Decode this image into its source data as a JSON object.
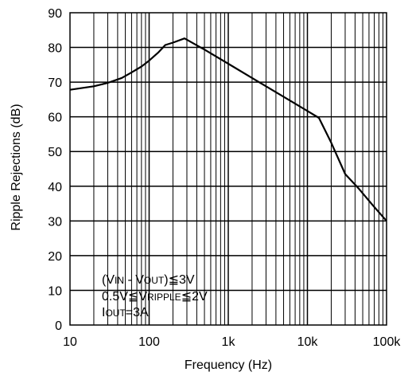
{
  "chart_data": {
    "type": "line",
    "title": "",
    "xlabel": "Frequency (Hz)",
    "ylabel": "Ripple Rejections (dB)",
    "x_scale": "log",
    "xlim": [
      10,
      100000
    ],
    "ylim": [
      0,
      90
    ],
    "grid": true,
    "x_ticks": [
      {
        "value": 10,
        "label": "10"
      },
      {
        "value": 100,
        "label": "100"
      },
      {
        "value": 1000,
        "label": "1k"
      },
      {
        "value": 10000,
        "label": "10k"
      },
      {
        "value": 100000,
        "label": "100k"
      }
    ],
    "y_ticks": [
      {
        "value": 0,
        "label": "0"
      },
      {
        "value": 10,
        "label": "10"
      },
      {
        "value": 20,
        "label": "20"
      },
      {
        "value": 30,
        "label": "30"
      },
      {
        "value": 40,
        "label": "40"
      },
      {
        "value": 50,
        "label": "50"
      },
      {
        "value": 60,
        "label": "60"
      },
      {
        "value": 70,
        "label": "70"
      },
      {
        "value": 80,
        "label": "80"
      },
      {
        "value": 90,
        "label": "90"
      }
    ],
    "series": [
      {
        "x": [
          10,
          20,
          30,
          45,
          60,
          80,
          100,
          130,
          160,
          200,
          280,
          500,
          1000,
          2000,
          5000,
          10000,
          14000,
          20000,
          30000,
          45000,
          70000,
          100000
        ],
        "y": [
          67.8,
          68.8,
          69.8,
          71.2,
          72.8,
          74.5,
          76.2,
          78.5,
          80.7,
          81.4,
          82.6,
          79.4,
          75.3,
          71.2,
          65.8,
          61.7,
          59.7,
          52.5,
          43.5,
          39.2,
          34.0,
          30.0
        ]
      }
    ],
    "annotations": {
      "line1": {
        "open": "(V",
        "sub1": "IN",
        "mid": " - V",
        "sub2": "OUT",
        "close": ")≦3V"
      },
      "line2": {
        "pre": "0.5V≦V",
        "sub": "RIPPLE",
        "post": "≦2V"
      },
      "line3": {
        "pre": "I",
        "sub": "OUT",
        "post": "=3A"
      }
    }
  }
}
